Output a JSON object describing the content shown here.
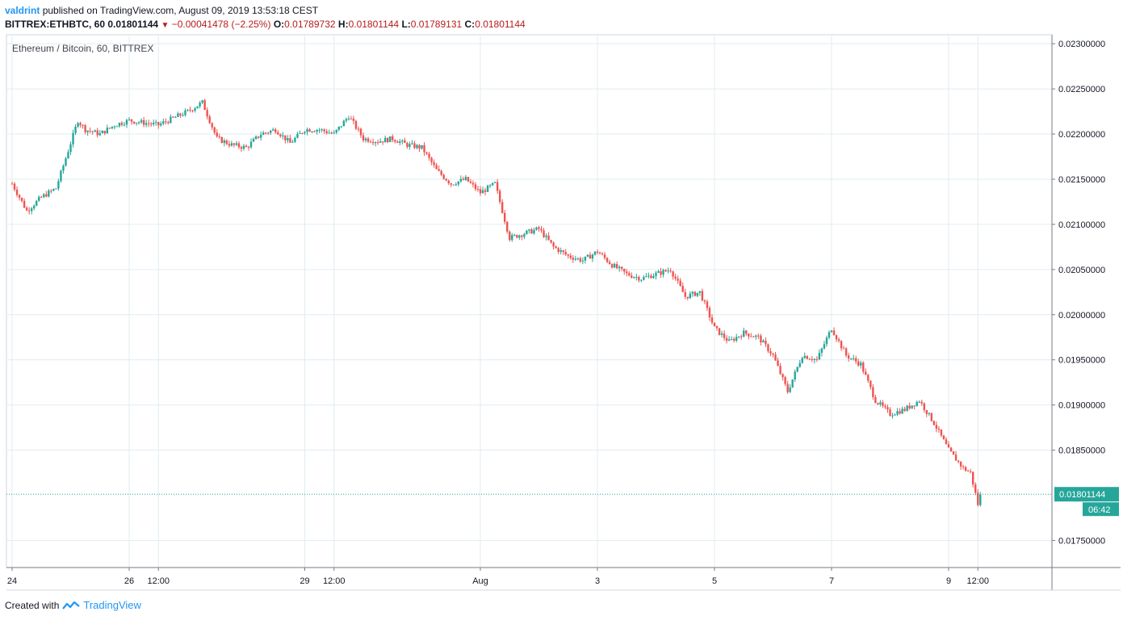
{
  "header": {
    "author": "valdrint",
    "published_text": "published on TradingView.com, August 09, 2019 13:53:18 CEST"
  },
  "ohlc": {
    "symbol": "BITTREX:ETHBTC, 60",
    "last": "0.01801144",
    "change": "−0.00041478 (−2.25%)",
    "o_label": "O:",
    "o_value": "0.01789732",
    "h_label": "H:",
    "h_value": "0.01801144",
    "l_label": "L:",
    "l_value": "0.01789131",
    "c_label": "C:",
    "c_value": "0.01801144"
  },
  "legend": {
    "title": "Ethereum / Bitcoin, 60, BITTREX"
  },
  "footer": {
    "created_with": "Created with",
    "brand": "TradingView"
  },
  "colors": {
    "up": "#26a69a",
    "down": "#ef5350",
    "grid": "#e1ecf2",
    "axis": "#787b86",
    "last_price_bg": "#26a69a"
  },
  "icons": {
    "down_arrow": "down-triangle-icon",
    "brand_logo": "tradingview-logo-icon"
  },
  "chart_data": {
    "type": "candlestick",
    "title": "Ethereum / Bitcoin, 60, BITTREX",
    "y_ticks": [
      "0.02300000",
      "0.02250000",
      "0.02200000",
      "0.02150000",
      "0.02100000",
      "0.02050000",
      "0.02000000",
      "0.01950000",
      "0.01900000",
      "0.01850000",
      "0.01750000"
    ],
    "x_ticks": [
      "24",
      "26",
      "12:00",
      "29",
      "12:00",
      "Aug",
      "3",
      "5",
      "7",
      "9",
      "12:00"
    ],
    "ylim": [
      0.0172,
      0.0231
    ],
    "last_price_label": "0.01801144",
    "countdown_label": "06:42",
    "grid": true,
    "series_close_path": [
      [
        "24 00:00",
        0.02145
      ],
      [
        "24 06:00",
        0.02115
      ],
      [
        "24 12:00",
        0.0213
      ],
      [
        "24 18:00",
        0.0214
      ],
      [
        "25 00:00",
        0.0219
      ],
      [
        "25 03:00",
        0.02215
      ],
      [
        "25 06:00",
        0.02205
      ],
      [
        "25 12:00",
        0.022
      ],
      [
        "25 18:00",
        0.0221
      ],
      [
        "26 00:00",
        0.02215
      ],
      [
        "26 12:00",
        0.0221
      ],
      [
        "27 00:00",
        0.02225
      ],
      [
        "27 06:00",
        0.02235
      ],
      [
        "27 12:00",
        0.02195
      ],
      [
        "27 18:00",
        0.02188
      ],
      [
        "28 00:00",
        0.02185
      ],
      [
        "28 06:00",
        0.022
      ],
      [
        "28 12:00",
        0.02205
      ],
      [
        "28 18:00",
        0.0219
      ],
      [
        "29 00:00",
        0.02205
      ],
      [
        "29 06:00",
        0.02205
      ],
      [
        "29 12:00",
        0.022
      ],
      [
        "29 18:00",
        0.0222
      ],
      [
        "30 00:00",
        0.02195
      ],
      [
        "30 06:00",
        0.02192
      ],
      [
        "30 12:00",
        0.02195
      ],
      [
        "30 18:00",
        0.02188
      ],
      [
        "31 00:00",
        0.02185
      ],
      [
        "31 06:00",
        0.0216
      ],
      [
        "31 12:00",
        0.02145
      ],
      [
        "31 18:00",
        0.0215
      ],
      [
        "01 00:00",
        0.02135
      ],
      [
        "01 06:00",
        0.02145
      ],
      [
        "01 12:00",
        0.02085
      ],
      [
        "01 18:00",
        0.0209
      ],
      [
        "02 00:00",
        0.02095
      ],
      [
        "02 06:00",
        0.02075
      ],
      [
        "02 12:00",
        0.02065
      ],
      [
        "02 18:00",
        0.0206
      ],
      [
        "03 00:00",
        0.0207
      ],
      [
        "03 06:00",
        0.02055
      ],
      [
        "03 12:00",
        0.02045
      ],
      [
        "03 18:00",
        0.0204
      ],
      [
        "04 00:00",
        0.02045
      ],
      [
        "04 06:00",
        0.0205
      ],
      [
        "04 12:00",
        0.0202
      ],
      [
        "04 18:00",
        0.02025
      ],
      [
        "05 00:00",
        0.01985
      ],
      [
        "05 06:00",
        0.0197
      ],
      [
        "05 12:00",
        0.0198
      ],
      [
        "05 18:00",
        0.01975
      ],
      [
        "06 00:00",
        0.01955
      ],
      [
        "06 06:00",
        0.01915
      ],
      [
        "06 12:00",
        0.01955
      ],
      [
        "06 18:00",
        0.0195
      ],
      [
        "07 00:00",
        0.01985
      ],
      [
        "07 06:00",
        0.01955
      ],
      [
        "07 12:00",
        0.01945
      ],
      [
        "07 18:00",
        0.01905
      ],
      [
        "08 00:00",
        0.0189
      ],
      [
        "08 06:00",
        0.01895
      ],
      [
        "08 12:00",
        0.01905
      ],
      [
        "08 18:00",
        0.0188
      ],
      [
        "09 00:00",
        0.0185
      ],
      [
        "09 06:00",
        0.0183
      ],
      [
        "09 09:00",
        0.01825
      ],
      [
        "09 12:00",
        0.0179
      ],
      [
        "09 13:00",
        0.01801
      ]
    ]
  }
}
